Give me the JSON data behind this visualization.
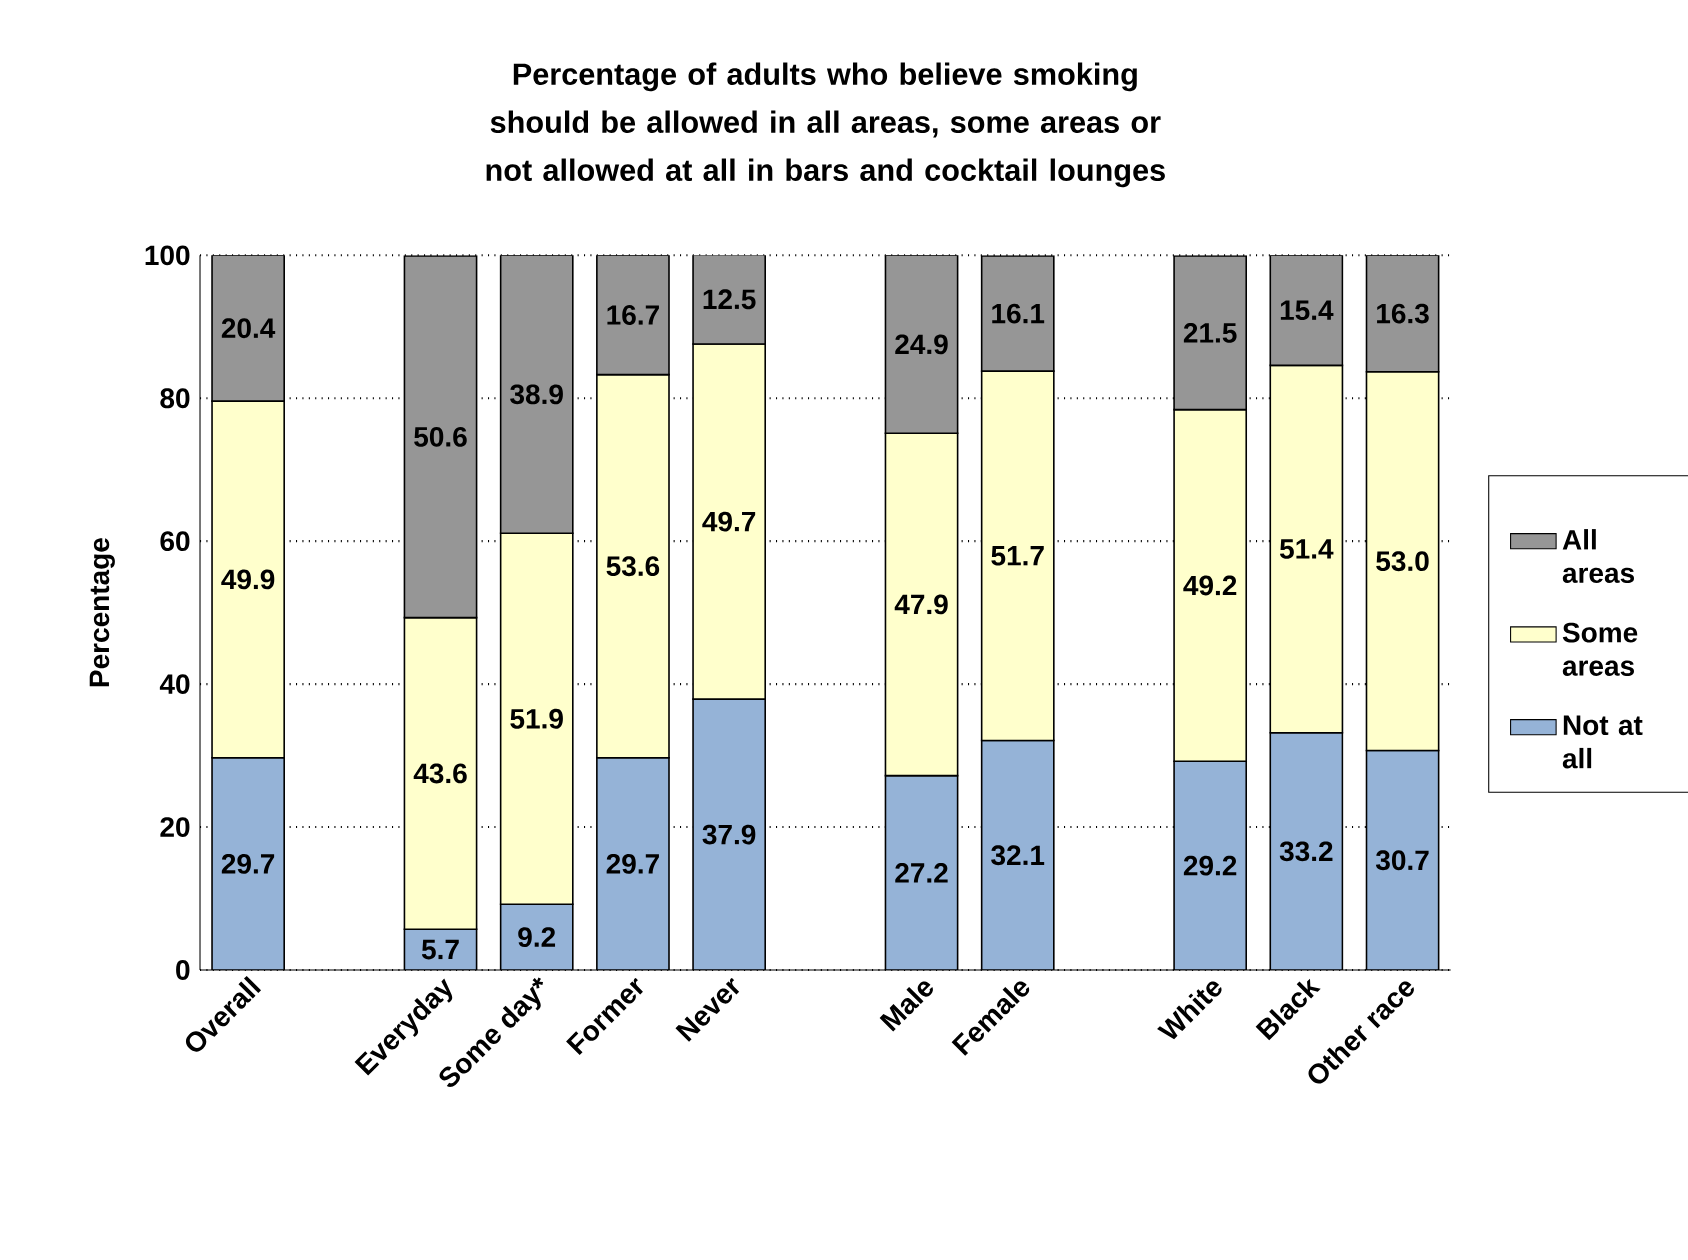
{
  "chart_data": {
    "type": "bar",
    "stacked": true,
    "title": "Percentage of adults who believe smoking should be allowed in all areas, some areas or not allowed at all in bars and cocktail lounges",
    "ylabel": "Percentage",
    "categories": [
      "Overall",
      null,
      "Everyday",
      "Some day*",
      "Former",
      "Never",
      null,
      "Male",
      "Female",
      null,
      "White",
      "Black",
      "Other race"
    ],
    "series": [
      {
        "name": "Not at all",
        "color": "#95b3d7",
        "values": [
          29.7,
          null,
          5.7,
          9.2,
          29.7,
          37.9,
          null,
          27.2,
          32.1,
          null,
          29.2,
          33.2,
          30.7
        ],
        "value_labels": [
          "29.7",
          null,
          "5.7",
          "9.2",
          "29.7",
          "37.9",
          null,
          "27.2",
          "32.1",
          null,
          "29.2",
          "33.2",
          "30.7"
        ]
      },
      {
        "name": "Some areas",
        "color": "#ffffcc",
        "values": [
          49.9,
          null,
          43.6,
          51.9,
          53.6,
          49.7,
          null,
          47.9,
          51.7,
          null,
          49.2,
          51.4,
          53.0
        ],
        "value_labels": [
          "49.9",
          null,
          "43.6",
          "51.9",
          "53.6",
          "49.7",
          null,
          "47.9",
          "51.7",
          null,
          "49.2",
          "51.4",
          "53.0"
        ]
      },
      {
        "name": "All areas",
        "color": "#969696",
        "values": [
          20.4,
          null,
          50.6,
          38.9,
          16.7,
          12.5,
          null,
          24.9,
          16.1,
          null,
          21.5,
          15.4,
          16.3
        ],
        "value_labels": [
          "20.4",
          null,
          "50.6",
          "38.9",
          "16.7",
          "12.5",
          null,
          "24.9",
          "16.1",
          null,
          "21.5",
          "15.4",
          "16.3"
        ]
      }
    ],
    "ylim": [
      0,
      100
    ],
    "yticks": [
      0,
      20,
      40,
      60,
      80,
      100
    ],
    "grid": "y",
    "legend": "right"
  }
}
